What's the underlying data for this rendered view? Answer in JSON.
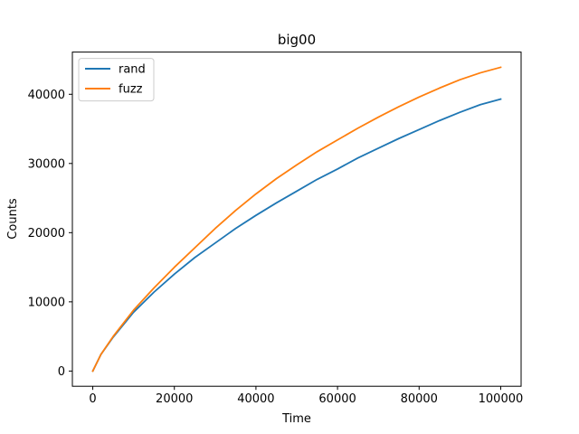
{
  "chart_data": {
    "type": "line",
    "title": "big00",
    "xlabel": "Time",
    "ylabel": "Counts",
    "xlim": [
      -5000,
      105000
    ],
    "ylim": [
      -2200,
      46100
    ],
    "xticks": [
      0,
      20000,
      40000,
      60000,
      80000,
      100000
    ],
    "xtick_labels": [
      "0",
      "20000",
      "40000",
      "60000",
      "80000",
      "100000"
    ],
    "yticks": [
      0,
      10000,
      20000,
      30000,
      40000
    ],
    "ytick_labels": [
      "0",
      "10000",
      "20000",
      "30000",
      "40000"
    ],
    "grid": false,
    "legend": {
      "placement": "upper-left"
    },
    "x": [
      0,
      2000,
      5000,
      10000,
      15000,
      20000,
      25000,
      30000,
      35000,
      40000,
      45000,
      50000,
      55000,
      60000,
      65000,
      70000,
      75000,
      80000,
      85000,
      90000,
      95000,
      100000
    ],
    "series": [
      {
        "name": "rand",
        "color": "#1f77b4",
        "values": [
          0,
          2400,
          4900,
          8500,
          11400,
          14000,
          16400,
          18500,
          20600,
          22500,
          24300,
          26000,
          27700,
          29200,
          30800,
          32200,
          33600,
          34900,
          36200,
          37400,
          38500,
          39300
        ]
      },
      {
        "name": "fuzz",
        "color": "#ff7f0e",
        "values": [
          0,
          2400,
          5000,
          8800,
          12000,
          15000,
          17800,
          20600,
          23200,
          25600,
          27800,
          29800,
          31700,
          33400,
          35100,
          36700,
          38200,
          39600,
          40900,
          42100,
          43100,
          43900
        ]
      }
    ]
  }
}
